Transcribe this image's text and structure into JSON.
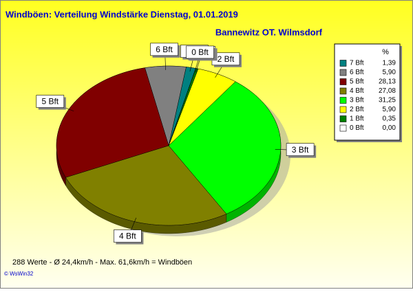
{
  "chart_data": {
    "type": "pie",
    "title": "Windböen: Verteilung Windstärke  Dienstag, 01.01.2019",
    "subtitle": "Bannewitz OT. Wilmsdorf",
    "legend_title": "%",
    "categories": [
      "7 Bft",
      "6 Bft",
      "5 Bft",
      "4 Bft",
      "3 Bft",
      "2 Bft",
      "1 Bft",
      "0 Bft"
    ],
    "values": [
      1.39,
      5.9,
      28.13,
      27.08,
      31.25,
      5.9,
      0.35,
      0.0
    ],
    "value_labels": [
      "1,39",
      "5,90",
      "28,13",
      "27,08",
      "31,25",
      "5,90",
      "0,35",
      "0,00"
    ],
    "colors": [
      "#008080",
      "#808080",
      "#800000",
      "#808000",
      "#00ff00",
      "#ffff00",
      "#008000",
      "#ffffff"
    ],
    "footer": "288 Werte   -   Ø 24,4km/h   -   Max. 61,6km/h = Windböen",
    "credit": "© WsWin32"
  }
}
